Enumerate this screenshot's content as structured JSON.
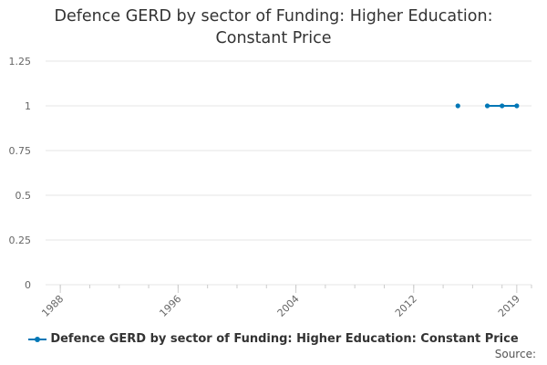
{
  "chart_data": {
    "type": "line",
    "title_lines": [
      "Defence GERD by sector of Funding: Higher Education:",
      "Constant Price"
    ],
    "xlabel": "",
    "ylabel": "",
    "xlim": [
      1987,
      2020
    ],
    "ylim": [
      0,
      1.25
    ],
    "x_ticks": [
      1988,
      1996,
      2004,
      2012,
      2019
    ],
    "y_ticks": [
      0,
      0.25,
      0.5,
      0.75,
      1,
      1.25
    ],
    "y_tick_labels": [
      "0",
      "0.25",
      "0.5",
      "0.75",
      "1",
      "1.25"
    ],
    "grid": true,
    "legend_position": "bottom",
    "series": [
      {
        "name": "Defence GERD by sector of Funding: Higher Education: Constant Price",
        "color": "#0077b6",
        "points": [
          [
            2015,
            1
          ],
          [
            2017,
            1
          ],
          [
            2018,
            1
          ],
          [
            2019,
            1
          ]
        ],
        "segments": [
          [
            [
              2015,
              1
            ]
          ],
          [
            [
              2017,
              1
            ],
            [
              2018,
              1
            ],
            [
              2019,
              1
            ]
          ]
        ]
      }
    ]
  },
  "footer": {
    "source_label": "Source:"
  }
}
